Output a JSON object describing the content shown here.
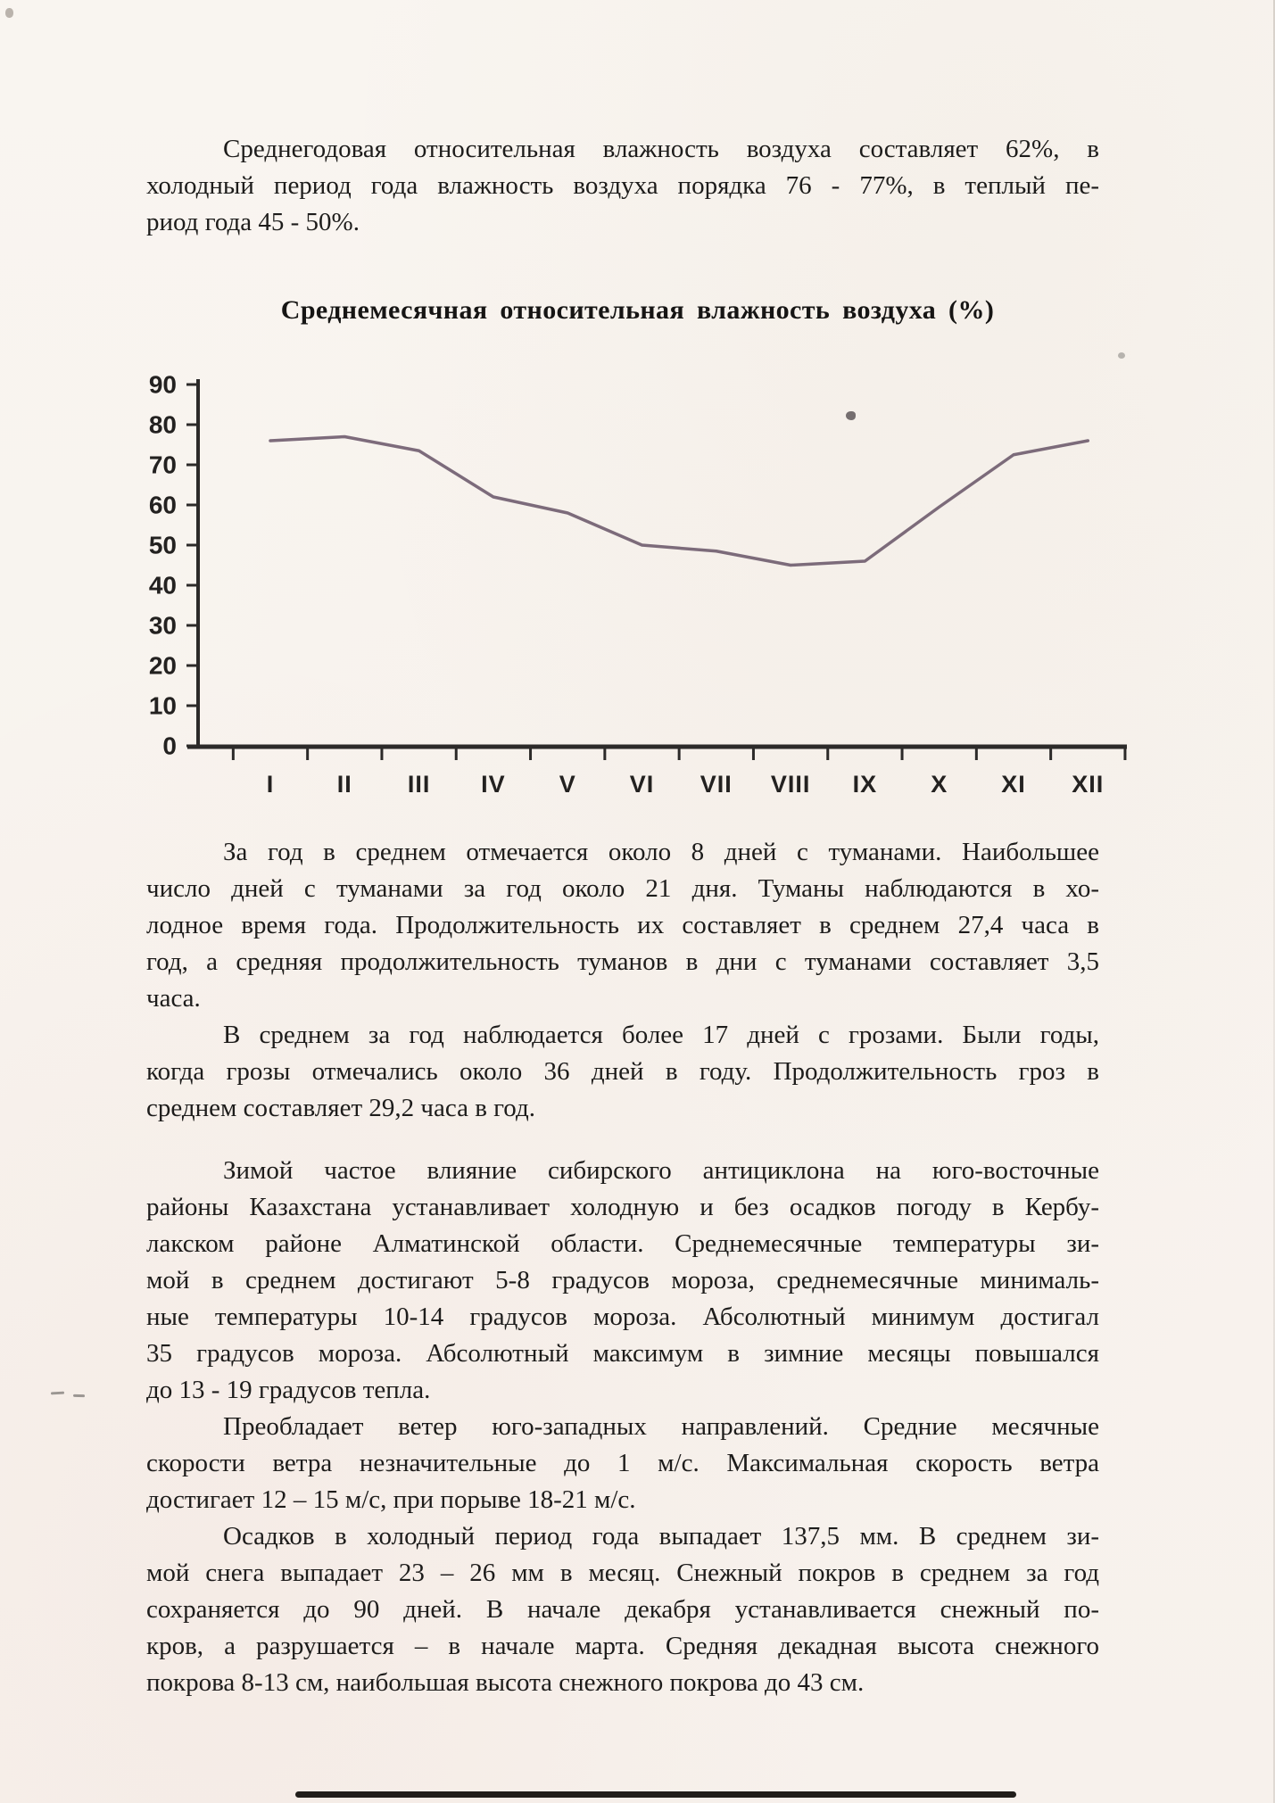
{
  "document": {
    "paragraphs": [
      {
        "lines": [
          "Среднегодовая относительная влажность воздуха составляет 62%, в",
          "холодный период года влажность воздуха порядка 76 - 77%, в теплый пе-",
          "риод года 45 - 50%."
        ]
      },
      {
        "lines": [
          "За год в среднем отмечается около 8 дней с туманами. Наибольшее",
          "число дней с туманами за год около 21 дня. Туманы наблюдаются в хо-",
          "лодное время года. Продолжительность их составляет в среднем 27,4 часа в",
          "год, а средняя продолжительность туманов в дни с туманами составляет 3,5",
          "часа."
        ]
      },
      {
        "lines": [
          "В среднем за год наблюдается более 17 дней с грозами. Были годы,",
          "когда грозы отмечались около 36 дней в году. Продолжительность гроз в",
          "среднем составляет 29,2 часа в год."
        ]
      },
      {
        "lines": [
          "Зимой частое влияние сибирского антициклона на юго-восточные",
          "районы Казахстана устанавливает холодную и без осадков погоду в Кербу-",
          "лакском районе Алматинской области. Среднемесячные температуры зи-",
          "мой в среднем достигают 5-8 градусов мороза, среднемесячные минималь-",
          "ные температуры 10-14 градусов мороза. Абсолютный минимум достигал",
          "35 градусов мороза. Абсолютный максимум в зимние месяцы повышался",
          "до 13 - 19 градусов тепла."
        ]
      },
      {
        "lines": [
          "Преобладает ветер юго-западных направлений. Средние месячные",
          "скорости ветра незначительные до 1 м/с. Максимальная скорость ветра",
          "достигает 12 – 15 м/с, при порыве 18-21 м/с."
        ]
      },
      {
        "lines": [
          "Осадков в холодный период года выпадает 137,5 мм. В среднем зи-",
          "мой снега выпадает 23 – 26 мм в месяц. Снежный покров в среднем за год",
          "сохраняется до 90 дней. В начале декабря устанавливается снежный по-",
          "кров, а разрушается – в начале марта. Средняя декадная высота снежного",
          "покрова 8-13 см, наибольшая высота снежного покрова до 43 см."
        ]
      }
    ]
  },
  "chart_data": {
    "type": "line",
    "title": "Среднемесячная относительная влажность воздуха (%)",
    "categories": [
      "I",
      "II",
      "III",
      "IV",
      "V",
      "VI",
      "VII",
      "VIII",
      "IX",
      "X",
      "XI",
      "XII"
    ],
    "values": [
      76,
      77,
      73.5,
      62,
      58,
      50,
      48.5,
      45,
      46,
      59.5,
      72.5,
      76
    ],
    "y_ticks": [
      0,
      10,
      20,
      30,
      40,
      50,
      60,
      70,
      80,
      90
    ],
    "xlabel": "",
    "ylabel": "",
    "ylim": [
      0,
      90
    ],
    "grid": false,
    "legend": "none",
    "line_color": "#6f5c6e",
    "axis_color": "#2c2a29"
  }
}
